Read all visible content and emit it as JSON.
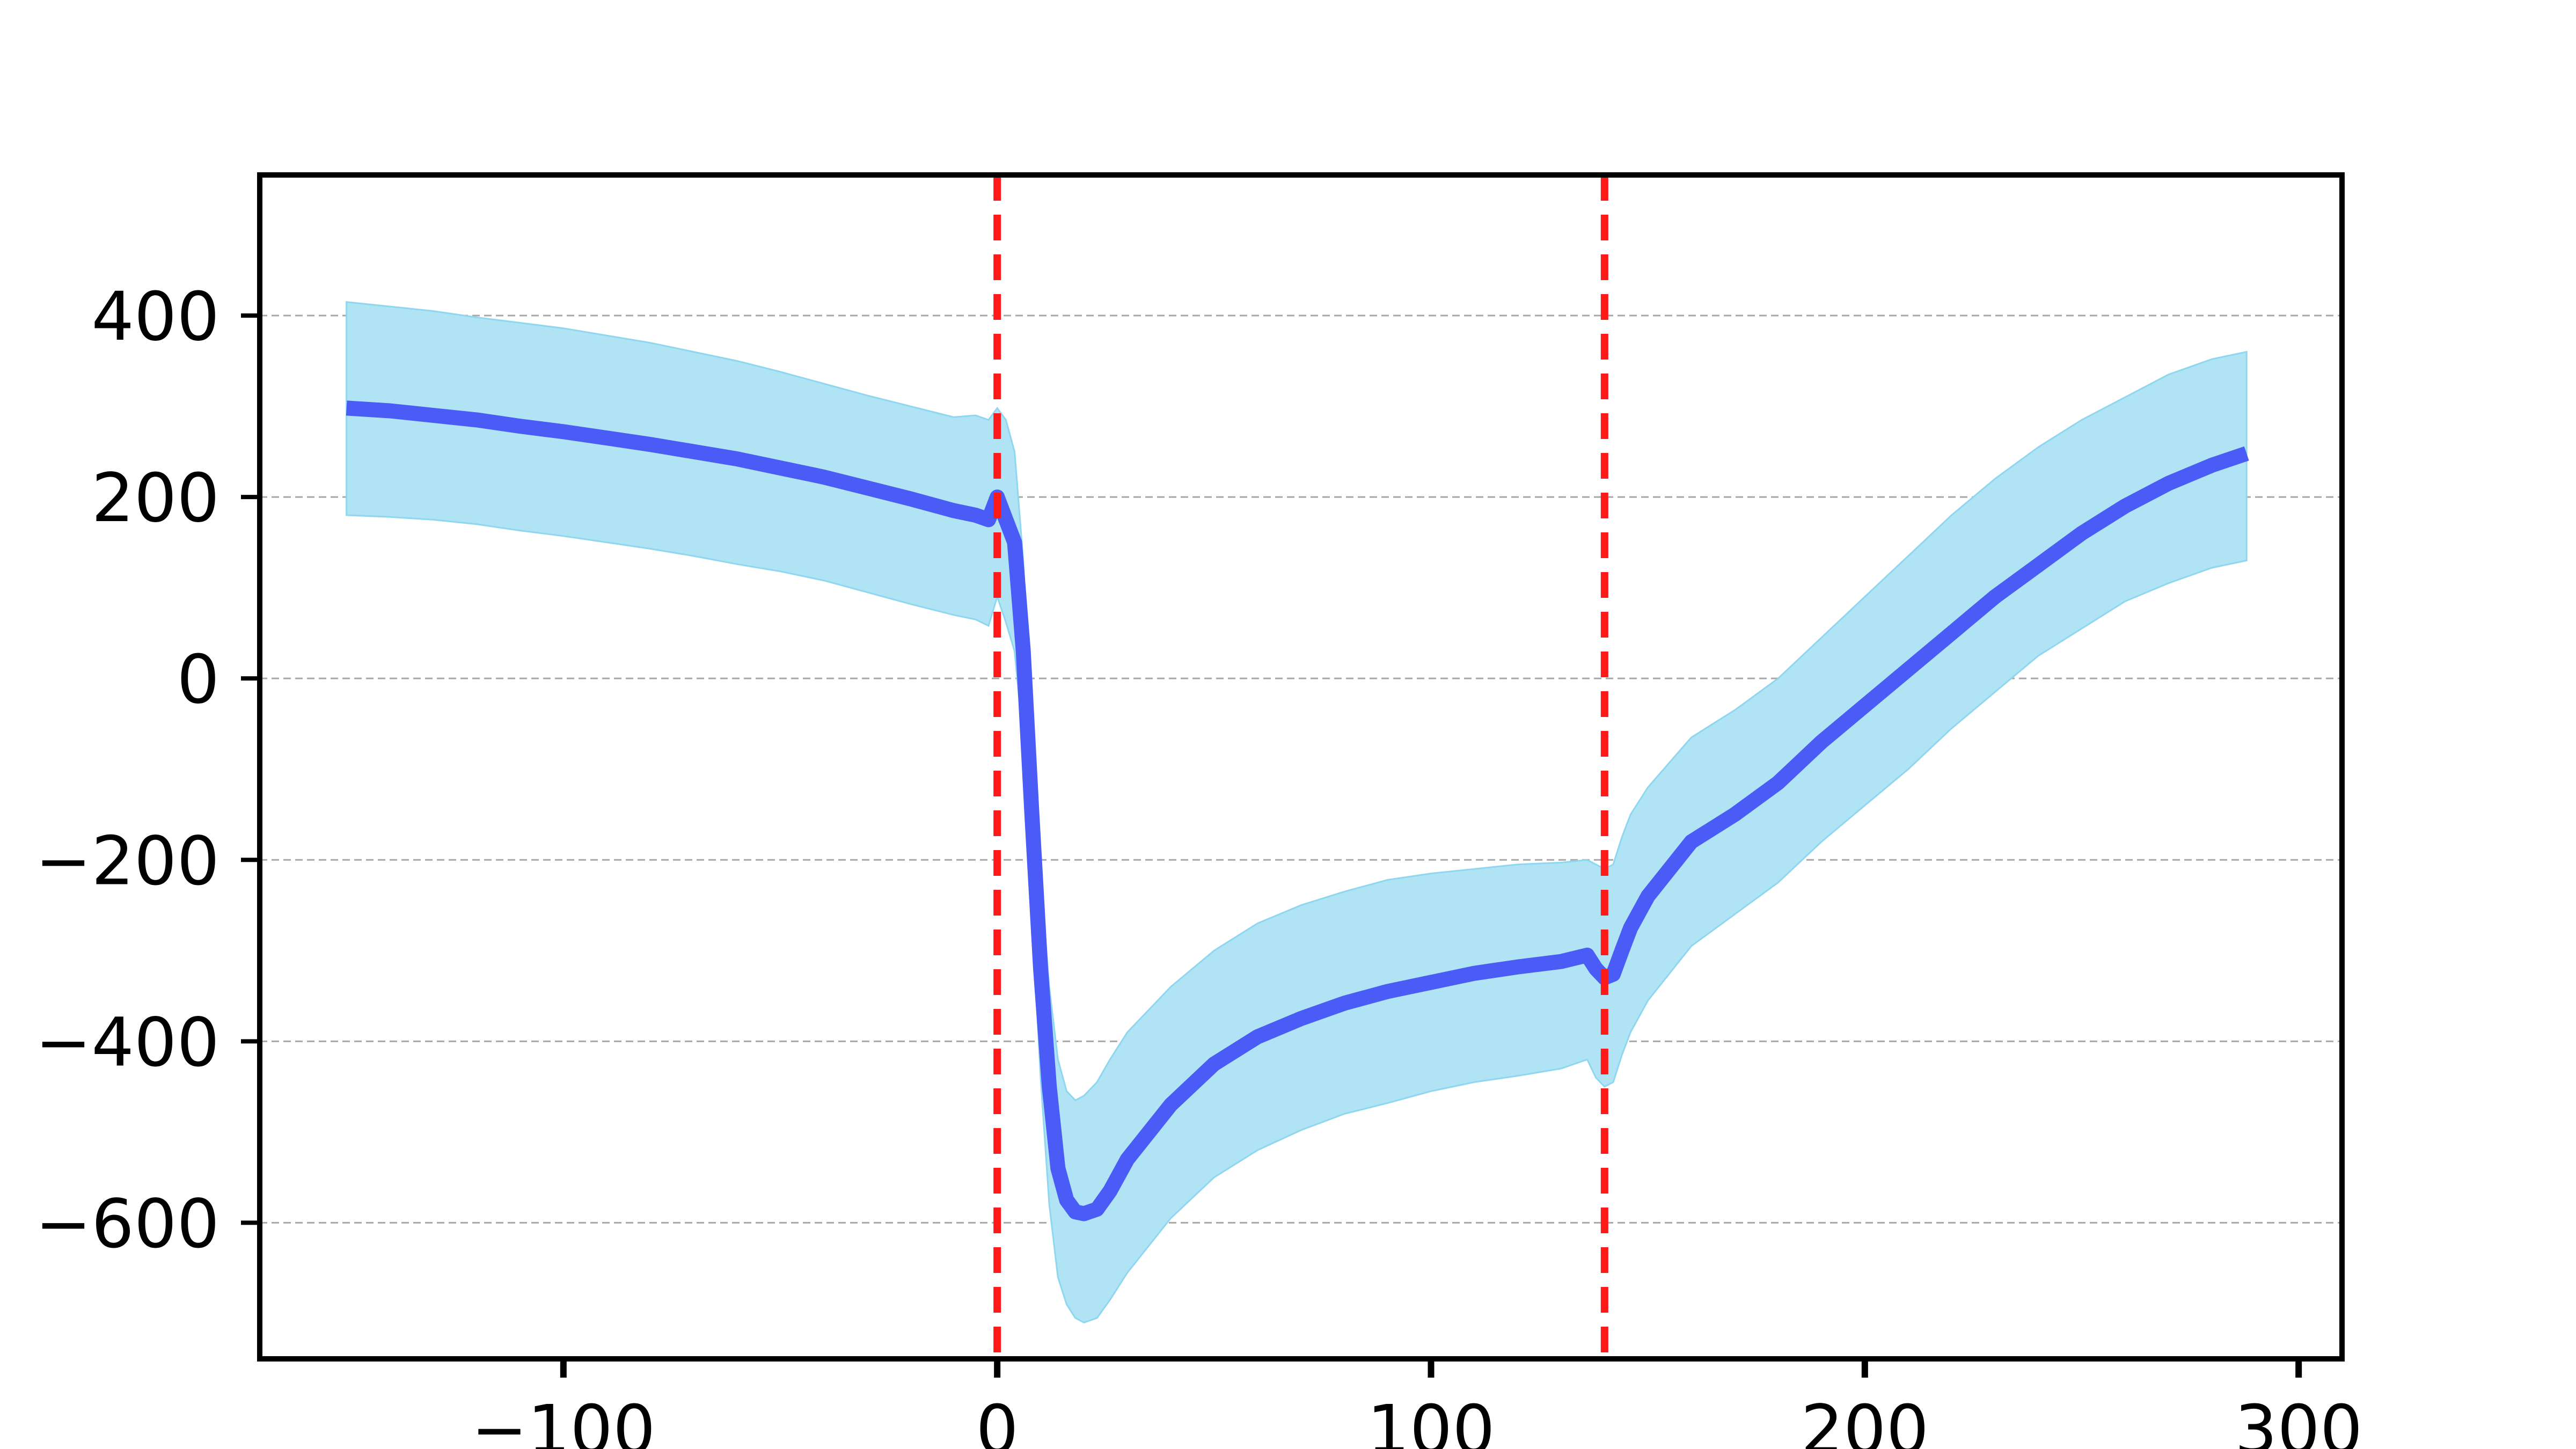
{
  "chart_data": {
    "type": "line",
    "title": "",
    "xlabel": "",
    "ylabel": "",
    "xlim": [
      -170,
      310
    ],
    "ylim": [
      -750,
      555
    ],
    "x_ticks": [
      -100,
      0,
      100,
      200,
      300
    ],
    "y_ticks": [
      -600,
      -400,
      -200,
      0,
      200,
      400
    ],
    "x_tick_labels": [
      "−100",
      "0",
      "100",
      "200",
      "300"
    ],
    "y_tick_labels": [
      "−600",
      "−400",
      "−200",
      "0",
      "200",
      "400"
    ],
    "grid": {
      "y": true,
      "x": false,
      "style": "dashed"
    },
    "vertical_markers": [
      0,
      140
    ],
    "colors": {
      "mean": "#4a5cf5",
      "band": "#b0e4f5",
      "band_edge": "#8fd6ef",
      "marker": "#ff1a1a",
      "grid": "#a8a8a8",
      "axes": "#000000"
    },
    "series": [
      {
        "x": [
          -150,
          -140,
          -130,
          -120,
          -110,
          -100,
          -90,
          -80,
          -70,
          -60,
          -50,
          -40,
          -30,
          -20,
          -10,
          -5,
          -2,
          0,
          2,
          4,
          6,
          8,
          10,
          12,
          14,
          16,
          18,
          20,
          23,
          26,
          30,
          40,
          50,
          60,
          70,
          80,
          90,
          100,
          110,
          120,
          130,
          136,
          138,
          140,
          142,
          144,
          146,
          150,
          160,
          170,
          180,
          190,
          200,
          210,
          220,
          230,
          240,
          250,
          260,
          270,
          280,
          288
        ],
        "y": [
          298,
          295,
          290,
          285,
          278,
          272,
          265,
          258,
          250,
          242,
          232,
          222,
          210,
          198,
          185,
          180,
          175,
          200,
          175,
          150,
          30,
          -150,
          -320,
          -450,
          -540,
          -575,
          -588,
          -590,
          -585,
          -565,
          -530,
          -470,
          -425,
          -395,
          -375,
          -358,
          -345,
          -335,
          -325,
          -318,
          -312,
          -305,
          -320,
          -330,
          -326,
          -300,
          -275,
          -240,
          -180,
          -150,
          -115,
          -70,
          -30,
          10,
          50,
          90,
          125,
          160,
          190,
          215,
          235,
          248
        ],
        "upper": [
          415,
          410,
          405,
          398,
          392,
          386,
          378,
          370,
          360,
          350,
          338,
          325,
          312,
          300,
          288,
          290,
          285,
          298,
          285,
          250,
          130,
          -50,
          -220,
          -340,
          -420,
          -455,
          -465,
          -460,
          -445,
          -420,
          -390,
          -340,
          -300,
          -270,
          -250,
          -235,
          -222,
          -215,
          -210,
          -205,
          -203,
          -200,
          -205,
          -210,
          -205,
          -175,
          -150,
          -120,
          -65,
          -35,
          0,
          45,
          90,
          135,
          180,
          220,
          255,
          285,
          310,
          335,
          352,
          360
        ],
        "lower": [
          180,
          178,
          175,
          170,
          163,
          157,
          150,
          143,
          135,
          126,
          118,
          108,
          95,
          82,
          70,
          65,
          58,
          90,
          62,
          30,
          -70,
          -260,
          -440,
          -580,
          -660,
          -690,
          -705,
          -710,
          -705,
          -685,
          -655,
          -595,
          -550,
          -520,
          -498,
          -480,
          -468,
          -455,
          -445,
          -438,
          -430,
          -420,
          -440,
          -450,
          -445,
          -415,
          -390,
          -355,
          -295,
          -260,
          -225,
          -180,
          -140,
          -100,
          -55,
          -15,
          25,
          55,
          85,
          105,
          122,
          130
        ]
      }
    ]
  }
}
